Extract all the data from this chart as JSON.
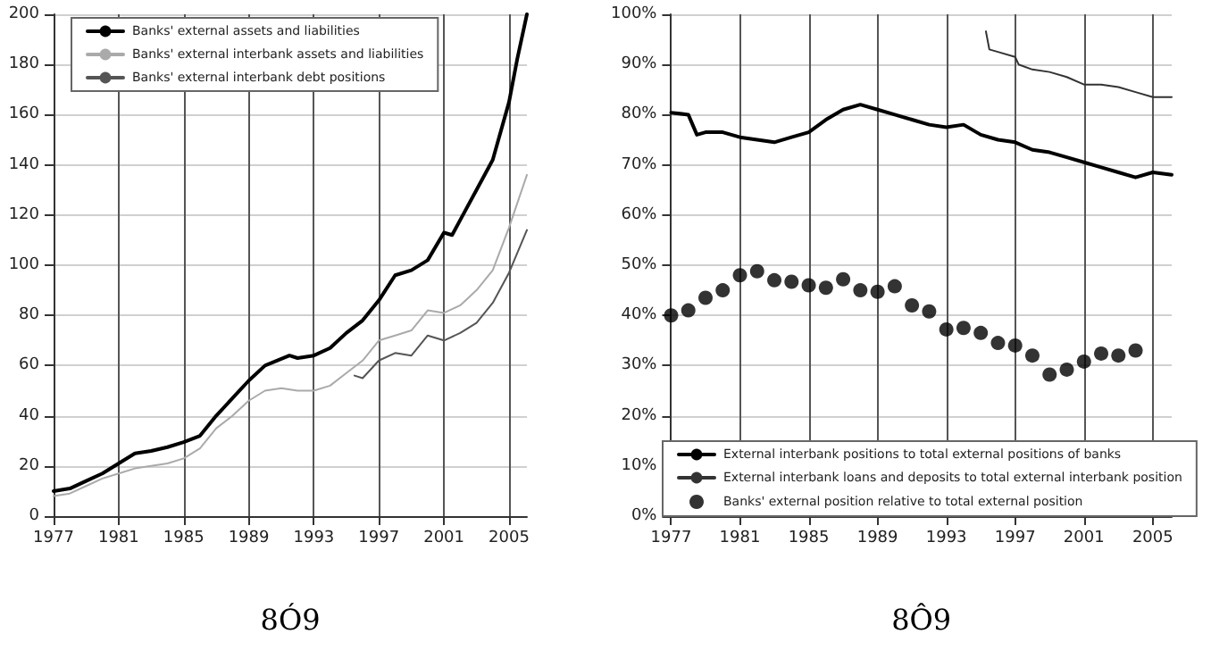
{
  "chart_data": [
    {
      "type": "line",
      "xlabel": "8Ó9",
      "xlim": [
        1977,
        2006.1
      ],
      "xticks": [
        1977,
        1981,
        1985,
        1989,
        1993,
        1997,
        2001,
        2005
      ],
      "ylim": [
        0,
        200
      ],
      "yticks": [
        0,
        20,
        40,
        60,
        80,
        100,
        120,
        140,
        160,
        180,
        200
      ],
      "grid": true,
      "legend": "top",
      "marker": "none",
      "line_style": "solid",
      "series": [
        {
          "name": "Banks' external assets and liabilities",
          "color": "#000000",
          "x": [
            1977,
            1978,
            1979,
            1980,
            1981,
            1982,
            1983,
            1984,
            1985,
            1986,
            1987,
            1988,
            1989,
            1990,
            1991.5,
            1992,
            1993,
            1994,
            1995,
            1996,
            1997,
            1998,
            1999,
            2000,
            2001,
            2001.5,
            2002,
            2003,
            2004,
            2005,
            2005.5,
            2006.1
          ],
          "values": [
            10,
            11,
            14,
            17,
            21,
            25,
            26,
            27.5,
            29.5,
            32,
            40,
            47,
            54,
            60,
            64,
            63,
            64,
            67,
            73,
            78,
            86,
            96,
            98,
            102,
            113,
            112,
            118,
            130,
            142,
            165,
            182,
            200
          ]
        },
        {
          "name": "Banks' external interbank assets and liabilities",
          "color": "#aaaaaa",
          "x": [
            1977,
            1978,
            1979,
            1980,
            1981,
            1982,
            1983,
            1984,
            1985,
            1986,
            1987,
            1988,
            1989,
            1990,
            1991,
            1992,
            1993,
            1994,
            1995,
            1996,
            1997,
            1998,
            1999,
            2000,
            2001,
            2002,
            2003,
            2004,
            2005,
            2006.1
          ],
          "values": [
            8,
            9,
            12,
            15,
            17,
            19,
            20,
            21,
            23,
            27,
            35,
            40,
            46,
            50,
            51,
            50,
            50,
            52,
            57,
            62,
            70,
            72,
            74,
            82,
            81,
            84,
            90,
            98,
            115,
            136
          ]
        },
        {
          "name": "Banks' external interbank debt positions",
          "color": "#555555",
          "x": [
            1995.5,
            1996,
            1997,
            1998,
            1999,
            2000,
            2001,
            2002,
            2003,
            2004,
            2005,
            2006.1
          ],
          "values": [
            56,
            55,
            62,
            65,
            64,
            72,
            70,
            73,
            77,
            85,
            97,
            114
          ]
        }
      ]
    },
    {
      "type": "line",
      "xlabel": "8Ô9",
      "xlim": [
        1977,
        2006.1
      ],
      "xticks": [
        1977,
        1981,
        1985,
        1989,
        1993,
        1997,
        2001,
        2005
      ],
      "ylim": [
        0,
        100
      ],
      "yticks": [
        {
          "value": 0,
          "label": "0%"
        },
        {
          "value": 10,
          "label": "10%"
        },
        {
          "value": 20,
          "label": "20%"
        },
        {
          "value": 30,
          "label": "30%"
        },
        {
          "value": 40,
          "label": "40%"
        },
        {
          "value": 50,
          "label": "50%"
        },
        {
          "value": 60,
          "label": "60%"
        },
        {
          "value": 70,
          "label": "70%"
        },
        {
          "value": 80,
          "label": "80%"
        },
        {
          "value": 90,
          "label": "90%"
        },
        {
          "value": 100,
          "label": "100%"
        }
      ],
      "grid": true,
      "legend": "bottom",
      "marker": "none",
      "line_style": "solid",
      "series": [
        {
          "name": "External interbank positions to total external positions of banks",
          "color": "#000000",
          "x": [
            1977,
            1978,
            1978.5,
            1979,
            1980,
            1981,
            1982,
            1983,
            1984,
            1985,
            1986,
            1987,
            1988,
            1989,
            1990,
            1991,
            1992,
            1993,
            1994,
            1995,
            1996,
            1997,
            1998,
            1999,
            2000,
            2001,
            2002,
            2003,
            2004,
            2005,
            2006.1
          ],
          "values": [
            80.4,
            80,
            76,
            76.5,
            76.5,
            75.5,
            75,
            74.5,
            75.5,
            76.5,
            79,
            81,
            82,
            81,
            80,
            79,
            78,
            77.5,
            78,
            76,
            75,
            74.5,
            73,
            72.5,
            71.5,
            70.5,
            69.5,
            68.5,
            67.5,
            68.5,
            68
          ]
        },
        {
          "name": "External interbank loans and deposits to total external interbank position",
          "color": "#333333",
          "x": [
            1995.3,
            1995.5,
            1996,
            1997,
            1997.2,
            1998,
            1999,
            2000,
            2001,
            2002,
            2003,
            2004,
            2005,
            2006.1
          ],
          "values": [
            96.6,
            93,
            92.5,
            91.5,
            90,
            89,
            88.5,
            87.5,
            86,
            86,
            85.5,
            84.5,
            83.5,
            83.5
          ]
        },
        {
          "name": "Banks' external position relative to total external position",
          "type": "scatter",
          "marker": "circle",
          "color": "#000000",
          "x": [
            1977,
            1978,
            1979,
            1980,
            1981,
            1982,
            1983,
            1984,
            1985,
            1986,
            1987,
            1988,
            1989,
            1990,
            1991,
            1992,
            1993,
            1994,
            1995,
            1996,
            1997,
            1998,
            1999,
            2000,
            2001,
            2002,
            2003,
            2004
          ],
          "values": [
            40,
            41,
            43.5,
            45,
            48,
            48.8,
            47,
            46.7,
            46,
            45.5,
            47.2,
            45,
            44.7,
            45.8,
            42,
            40.8,
            37.2,
            37.5,
            36.5,
            34.5,
            34,
            32,
            28.2,
            29.2,
            30.8,
            32.4,
            32,
            33
          ]
        }
      ]
    }
  ]
}
